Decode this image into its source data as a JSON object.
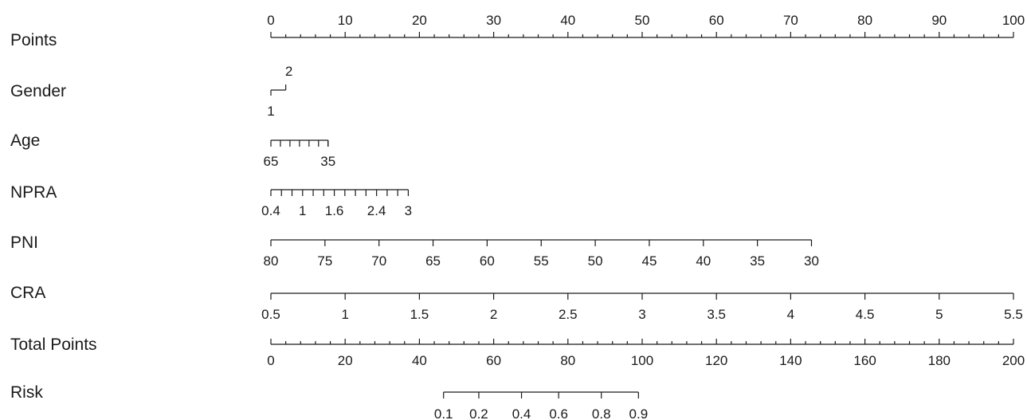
{
  "chart_data": {
    "type": "nomogram",
    "rows": [
      {
        "name": "Points",
        "kind": "points",
        "range": [
          0,
          100
        ],
        "labels": [
          "0",
          "10",
          "20",
          "30",
          "40",
          "50",
          "60",
          "70",
          "80",
          "90",
          "100"
        ]
      },
      {
        "name": "Gender",
        "kind": "categorical",
        "categories": [
          {
            "label": "1",
            "points": 0
          },
          {
            "label": "2",
            "points": 2
          }
        ]
      },
      {
        "name": "Age",
        "kind": "continuous",
        "value_points": [
          [
            65,
            0
          ],
          [
            35,
            7.7
          ]
        ],
        "ticks": [
          65,
          60,
          55,
          50,
          45,
          40,
          35,
          30
        ],
        "labels": [
          "65",
          "35"
        ]
      },
      {
        "name": "NPRA",
        "kind": "continuous",
        "value_points": [
          [
            0.4,
            0
          ],
          [
            3,
            18.5
          ]
        ],
        "ticks": [
          0.4,
          0.6,
          0.8,
          1,
          1.2,
          1.4,
          1.6,
          1.8,
          2,
          2.2,
          2.4,
          2.6,
          2.8,
          3
        ],
        "labels": [
          "0.4",
          "1",
          "1.6",
          "2.4",
          "3"
        ]
      },
      {
        "name": "PNI",
        "kind": "continuous",
        "value_points": [
          [
            80,
            0
          ],
          [
            30,
            72.8
          ]
        ],
        "ticks": [
          80,
          75,
          70,
          65,
          60,
          55,
          50,
          45,
          40,
          35,
          30
        ],
        "labels": [
          "80",
          "75",
          "70",
          "65",
          "60",
          "55",
          "50",
          "45",
          "40",
          "35",
          "30"
        ]
      },
      {
        "name": "CRA",
        "kind": "continuous",
        "value_points": [
          [
            0.5,
            0
          ],
          [
            5.5,
            100
          ]
        ],
        "ticks": [
          0.5,
          1,
          1.5,
          2,
          2.5,
          3,
          3.5,
          4,
          4.5,
          5,
          5.5
        ],
        "labels": [
          "0.5",
          "1",
          "1.5",
          "2",
          "2.5",
          "3",
          "3.5",
          "4",
          "4.5",
          "5",
          "5.5"
        ]
      },
      {
        "name": "Total Points",
        "kind": "total",
        "range": [
          0,
          200
        ],
        "labels": [
          "0",
          "20",
          "40",
          "60",
          "80",
          "100",
          "120",
          "140",
          "160",
          "180",
          "200"
        ]
      },
      {
        "name": "Risk",
        "kind": "risk",
        "value_total_points": [
          [
            0.1,
            46.5
          ],
          [
            0.2,
            56
          ],
          [
            0.4,
            67.5
          ],
          [
            0.6,
            77.5
          ],
          [
            0.8,
            89
          ],
          [
            0.9,
            99
          ]
        ],
        "labels": [
          "0.1",
          "0.2",
          "0.4",
          "0.6",
          "0.8",
          "0.9"
        ]
      }
    ]
  }
}
